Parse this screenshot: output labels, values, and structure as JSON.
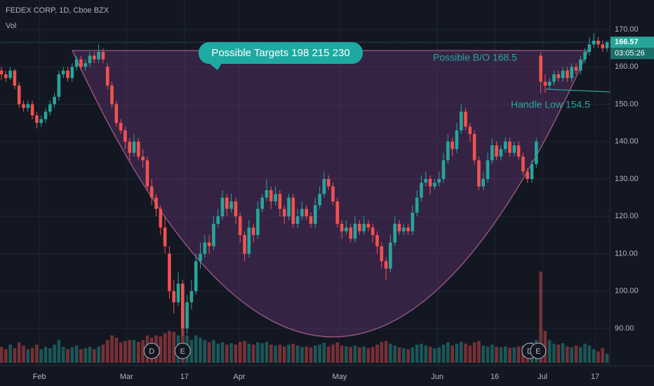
{
  "header": {
    "title": "FEDEX CORP, 1D, Cboe BZX",
    "volume_label": "Vol"
  },
  "chart_data": {
    "type": "candlestick",
    "up_color": "#26a69a",
    "down_color": "#ef5350",
    "ylim": [
      80.24,
      177.89
    ],
    "yticks": [
      {
        "value": 170,
        "label": "170.00"
      },
      {
        "value": 160,
        "label": "160.00"
      },
      {
        "value": 150,
        "label": "150.00"
      },
      {
        "value": 140,
        "label": "140.00"
      },
      {
        "value": 130,
        "label": "130.00"
      },
      {
        "value": 120,
        "label": "120.00"
      },
      {
        "value": 110,
        "label": "110.00"
      },
      {
        "value": 100,
        "label": "100.00"
      },
      {
        "value": 90,
        "label": "90.00"
      }
    ],
    "xlim": [
      -0.32,
      137.78
    ],
    "xticks": [
      {
        "value": 8.6,
        "label": "Feb"
      },
      {
        "value": 28.3,
        "label": "Mar"
      },
      {
        "value": 41.4,
        "label": "17"
      },
      {
        "value": 53.8,
        "label": "Apr"
      },
      {
        "value": 76.5,
        "label": "May"
      },
      {
        "value": 98.6,
        "label": "Jun"
      },
      {
        "value": 111.6,
        "label": "16"
      },
      {
        "value": 122.4,
        "label": "Jul"
      },
      {
        "value": 134.3,
        "label": "17"
      }
    ],
    "last_price": 166.57,
    "countdown": "03:05:26",
    "events": [
      {
        "label": "D",
        "index": 34
      },
      {
        "label": "E",
        "index": 41
      },
      {
        "label": "D",
        "index": 119.5
      },
      {
        "label": "E",
        "index": 121.4
      }
    ],
    "annotations": {
      "targets": "Possible Targets  198  215  230",
      "breakout": "Possible B/O 168.5",
      "handle": "Handle Low  154.5"
    },
    "candles": [
      [
        159,
        160,
        156.5,
        158
      ],
      [
        158,
        159,
        156,
        157
      ],
      [
        157,
        160,
        156.5,
        159
      ],
      [
        159,
        159.5,
        154,
        155
      ],
      [
        155,
        156,
        149,
        150
      ],
      [
        150,
        151,
        148,
        149
      ],
      [
        149,
        151,
        148,
        150
      ],
      [
        150,
        151,
        146,
        147
      ],
      [
        147,
        148,
        143.5,
        145
      ],
      [
        145,
        147,
        144,
        146
      ],
      [
        146,
        149,
        145,
        148
      ],
      [
        148,
        151,
        147,
        150
      ],
      [
        150,
        153,
        149,
        152
      ],
      [
        152,
        159,
        151,
        158
      ],
      [
        158,
        160,
        157,
        159
      ],
      [
        159,
        160,
        156,
        157
      ],
      [
        157,
        161,
        156,
        160
      ],
      [
        160,
        163,
        159,
        162
      ],
      [
        162,
        163,
        159,
        160
      ],
      [
        160,
        162,
        159,
        161
      ],
      [
        161,
        164,
        160,
        163
      ],
      [
        163,
        164,
        161,
        162
      ],
      [
        162,
        166,
        161,
        164
      ],
      [
        164,
        165,
        161,
        162
      ],
      [
        160,
        161,
        154,
        155
      ],
      [
        155,
        156,
        149,
        150
      ],
      [
        150,
        151,
        144,
        145
      ],
      [
        145,
        146,
        142,
        143
      ],
      [
        143,
        144,
        138,
        140
      ],
      [
        140,
        141,
        135,
        137
      ],
      [
        137,
        142,
        136,
        140
      ],
      [
        140,
        141,
        135,
        136
      ],
      [
        136,
        138,
        133,
        135
      ],
      [
        135,
        136,
        127,
        128
      ],
      [
        128,
        130,
        123,
        125
      ],
      [
        125,
        126,
        120,
        122
      ],
      [
        122,
        123,
        115,
        117
      ],
      [
        117,
        120,
        110,
        112
      ],
      [
        110,
        112,
        98,
        100
      ],
      [
        100,
        103,
        94,
        97
      ],
      [
        97,
        105,
        96,
        102
      ],
      [
        102,
        103,
        88,
        90
      ],
      [
        90,
        99,
        88.5,
        97
      ],
      [
        97,
        103,
        95,
        100
      ],
      [
        100,
        110,
        99,
        108
      ],
      [
        108,
        113,
        106,
        110
      ],
      [
        110,
        115,
        109,
        113
      ],
      [
        113,
        115,
        110,
        112
      ],
      [
        112,
        120,
        111,
        118
      ],
      [
        118,
        122,
        117,
        120
      ],
      [
        120,
        127,
        119,
        125
      ],
      [
        125,
        126,
        120,
        122
      ],
      [
        122,
        126,
        121,
        124
      ],
      [
        124,
        125,
        118,
        120
      ],
      [
        120,
        121,
        113,
        115
      ],
      [
        115,
        116,
        108,
        110
      ],
      [
        110,
        119,
        109,
        117
      ],
      [
        117,
        118,
        113,
        115
      ],
      [
        115,
        124,
        114,
        122
      ],
      [
        122,
        126,
        121,
        125
      ],
      [
        125,
        130,
        124,
        127
      ],
      [
        127,
        128,
        122,
        124
      ],
      [
        124,
        128,
        123,
        126
      ],
      [
        126,
        127,
        120,
        122
      ],
      [
        122,
        123,
        118,
        120
      ],
      [
        120,
        126,
        119,
        125
      ],
      [
        125,
        126,
        117,
        118
      ],
      [
        118,
        122,
        117,
        120
      ],
      [
        120,
        124,
        119,
        122
      ],
      [
        122,
        123,
        119,
        120
      ],
      [
        120,
        121,
        117,
        118
      ],
      [
        118,
        125,
        117,
        123
      ],
      [
        123,
        128,
        122,
        126
      ],
      [
        126,
        132,
        125,
        130
      ],
      [
        130,
        131,
        127,
        128
      ],
      [
        128,
        129,
        123,
        124
      ],
      [
        124,
        125,
        117,
        118
      ],
      [
        118,
        119,
        114,
        116
      ],
      [
        116,
        119,
        115,
        117
      ],
      [
        117,
        118,
        113,
        114
      ],
      [
        114,
        120,
        113,
        118
      ],
      [
        118,
        119,
        115,
        116
      ],
      [
        116,
        120,
        115,
        118
      ],
      [
        118,
        119,
        116,
        117
      ],
      [
        117,
        118,
        113,
        115
      ],
      [
        115,
        116,
        110,
        112
      ],
      [
        112,
        113,
        106,
        108
      ],
      [
        108,
        109,
        103,
        106
      ],
      [
        106,
        115,
        105,
        113
      ],
      [
        113,
        120,
        112,
        118
      ],
      [
        118,
        119,
        115,
        116
      ],
      [
        116,
        118,
        115,
        117
      ],
      [
        117,
        118,
        115,
        116
      ],
      [
        116,
        123,
        115,
        121
      ],
      [
        121,
        127,
        120,
        125
      ],
      [
        125,
        131,
        124,
        129
      ],
      [
        129,
        132,
        128,
        130
      ],
      [
        130,
        131,
        126,
        128
      ],
      [
        128,
        130,
        127,
        129
      ],
      [
        129,
        132,
        128,
        130
      ],
      [
        130,
        137,
        129,
        135
      ],
      [
        135,
        142,
        134,
        140
      ],
      [
        140,
        141,
        136,
        138
      ],
      [
        138,
        145,
        137,
        143
      ],
      [
        143,
        150,
        142,
        148
      ],
      [
        148,
        149,
        143,
        144
      ],
      [
        144,
        145,
        140,
        142
      ],
      [
        142,
        143,
        134,
        135
      ],
      [
        135,
        136,
        127,
        128
      ],
      [
        128,
        132,
        127,
        130
      ],
      [
        130,
        137,
        129,
        135
      ],
      [
        135,
        141,
        134,
        139
      ],
      [
        139,
        140,
        135,
        136
      ],
      [
        136,
        139,
        135,
        138
      ],
      [
        138,
        141,
        137,
        140
      ],
      [
        140,
        141,
        136,
        137
      ],
      [
        137,
        140,
        136,
        139
      ],
      [
        139,
        140,
        135,
        136
      ],
      [
        136,
        137,
        131,
        132
      ],
      [
        132,
        133,
        129,
        130
      ],
      [
        130,
        135,
        129,
        134
      ],
      [
        134,
        141,
        133,
        140
      ],
      [
        163,
        164,
        153,
        156
      ],
      [
        156,
        158,
        153,
        155
      ],
      [
        155,
        157,
        154,
        156
      ],
      [
        156,
        159,
        155,
        158
      ],
      [
        158,
        159,
        156,
        157
      ],
      [
        157,
        160,
        156,
        159
      ],
      [
        159,
        160,
        156,
        157
      ],
      [
        157,
        161,
        156,
        160
      ],
      [
        160,
        161,
        158,
        159
      ],
      [
        159,
        163,
        158,
        162
      ],
      [
        162,
        165,
        161,
        164
      ],
      [
        164,
        168,
        163,
        166
      ],
      [
        166,
        169,
        165,
        167
      ],
      [
        167,
        168,
        165,
        166
      ],
      [
        166,
        167,
        164,
        165
      ],
      [
        165,
        167,
        164,
        166.57
      ]
    ],
    "volume": [
      3.5,
      3,
      4,
      3.2,
      4.5,
      3.8,
      3,
      3.3,
      4,
      3,
      3.5,
      3.2,
      4,
      5,
      3.5,
      3,
      3.4,
      3.8,
      3,
      3.2,
      3.5,
      3,
      3.6,
      4,
      5,
      6,
      5.5,
      4.5,
      4.8,
      5,
      5,
      4.6,
      5,
      6,
      5.5,
      6,
      5.8,
      6.5,
      7,
      6.8,
      6,
      7.5,
      6,
      5,
      6,
      5.5,
      5,
      4.5,
      5,
      4.2,
      4.5,
      4,
      4.3,
      4,
      4.6,
      4.8,
      4.2,
      4,
      4.5,
      4.3,
      4.6,
      4,
      3.8,
      4,
      3.6,
      4,
      4.2,
      3.8,
      3.5,
      3.6,
      3.4,
      3.8,
      4,
      4.4,
      3.6,
      4,
      4.5,
      3.8,
      3.6,
      3.5,
      3.8,
      3.4,
      3.6,
      3.2,
      3.5,
      4,
      4.6,
      4.8,
      4.2,
      3.8,
      3.4,
      3.2,
      3,
      3.4,
      4,
      4.2,
      3.8,
      3.5,
      3.2,
      3.4,
      4,
      4.5,
      3.8,
      4.2,
      4.6,
      4.2,
      3.8,
      4.5,
      4.8,
      3.8,
      3.6,
      4,
      3.5,
      3.4,
      3.6,
      3.3,
      3.4,
      3.6,
      3.8,
      4,
      4.5,
      5,
      20,
      7,
      5,
      4.2,
      4,
      4.3,
      3.6,
      3.4,
      3.8,
      3.5,
      4.2,
      3.8,
      3,
      2.5,
      3.2,
      2
    ]
  }
}
